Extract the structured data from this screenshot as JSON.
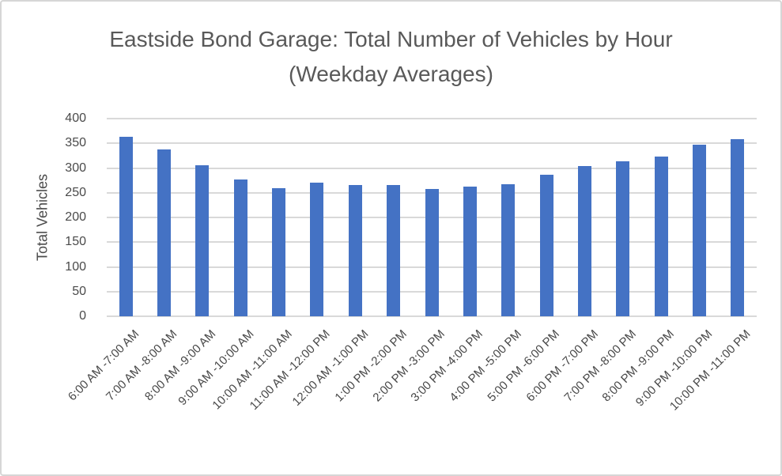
{
  "frame": {
    "background": "#ffffff",
    "border_color": "#d6d6d6"
  },
  "chart_data": {
    "type": "bar",
    "title": "Eastside Bond Garage: Total Number of Vehicles by Hour (Weekday Averages)",
    "xlabel": "",
    "ylabel": "Total Vehicles",
    "categories": [
      "6:00 AM -7:00 AM",
      "7:00 AM -8:00 AM",
      "8:00 AM -9:00 AM",
      "9:00 AM -10:00 AM",
      "10:00 AM -11:00 AM",
      "11:00 AM -12:00 PM",
      "12:00 AM -1:00 PM",
      "1:00 PM -2:00 PM",
      "2:00 PM -3:00 PM",
      "3:00 PM -4:00 PM",
      "4:00 PM -5:00 PM",
      "5:00 PM -6:00 PM",
      "6:00 PM -7:00 PM",
      "7:00 PM -8:00 PM",
      "8:00 PM -9:00 PM",
      "9:00 PM -10:00 PM",
      "10:00 PM -11:00 PM"
    ],
    "values": [
      363,
      337,
      306,
      277,
      260,
      270,
      266,
      266,
      258,
      262,
      268,
      287,
      304,
      313,
      323,
      347,
      358
    ],
    "ylim": [
      0,
      400
    ],
    "ytick_step": 50,
    "grid": true,
    "legend": false,
    "x_tick_rotation_deg": -45,
    "colors": {
      "bar": "#4472C4",
      "gridline": "#d9d9d9",
      "title": "#595959",
      "tick": "#4a4a4a"
    }
  }
}
